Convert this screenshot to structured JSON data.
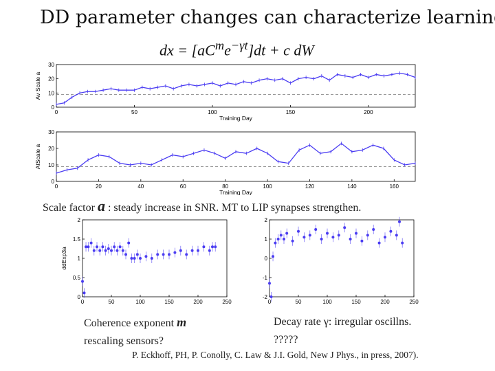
{
  "slide": {
    "title": "DD parameter changes can characterize learning",
    "equation": "dx = [aC^m e^{−γt}]dt + c dW",
    "equation_parts": {
      "lhs": "dx = [",
      "a": "a",
      "C": "C",
      "m": "m",
      "e": "e",
      "exp": "−γt",
      "rhs": "]dt + c dW"
    },
    "captions": {
      "scale_prefix": "Scale factor",
      "scale_symbol": "a",
      "scale_rest": ": steady increase in SNR. MT to LIP synapses strengthen.",
      "coherence_line1": "Coherence exponent",
      "coherence_symbol": "m",
      "coherence_line2": "rescaling sensors?",
      "decay_line1": "Decay rate γ: irregular oscillns.",
      "decay_line2": "?????"
    },
    "citation": "P. Eckhoff, PH, P. Conolly, C. Law & J.I. Gold, New J Phys., in press, 2007)."
  },
  "colors": {
    "series": "#4a3cf2",
    "dashed": "#777777",
    "axis": "#000000"
  },
  "chart_data": [
    {
      "id": "av-scale",
      "type": "line",
      "ylabel": "Av Scale a",
      "xlabel": "Training Day",
      "xlim": [
        0,
        230
      ],
      "ylim": [
        0,
        30
      ],
      "xticks": [
        0,
        50,
        100,
        150,
        200
      ],
      "yticks": [
        0,
        10,
        20,
        30
      ],
      "reference_line": 9,
      "x": [
        0,
        5,
        10,
        15,
        20,
        25,
        30,
        35,
        40,
        45,
        50,
        55,
        60,
        65,
        70,
        75,
        80,
        85,
        90,
        95,
        100,
        105,
        110,
        115,
        120,
        125,
        130,
        135,
        140,
        145,
        150,
        155,
        160,
        165,
        170,
        175,
        180,
        185,
        190,
        195,
        200,
        205,
        210,
        215,
        220,
        225,
        230
      ],
      "values": [
        2,
        3,
        7,
        10,
        11,
        11,
        12,
        13,
        12,
        12,
        12,
        14,
        13,
        14,
        15,
        13,
        15,
        16,
        15,
        16,
        17,
        15,
        17,
        16,
        18,
        17,
        19,
        20,
        19,
        20,
        17,
        20,
        21,
        20,
        22,
        19,
        23,
        22,
        21,
        23,
        21,
        23,
        22,
        23,
        24,
        23,
        21
      ]
    },
    {
      "id": "at-scale",
      "type": "line",
      "ylabel": "AtScale a",
      "xlabel": "Training Day",
      "xlim": [
        0,
        170
      ],
      "ylim": [
        0,
        30
      ],
      "xticks": [
        0,
        20,
        40,
        60,
        80,
        100,
        120,
        140,
        160
      ],
      "yticks": [
        0,
        10,
        20,
        30
      ],
      "reference_line": 9,
      "x": [
        0,
        5,
        10,
        15,
        20,
        25,
        30,
        35,
        40,
        45,
        50,
        55,
        60,
        65,
        70,
        75,
        80,
        85,
        90,
        95,
        100,
        105,
        110,
        115,
        120,
        125,
        130,
        135,
        140,
        145,
        150,
        155,
        160,
        165,
        170
      ],
      "values": [
        5,
        7,
        8,
        13,
        16,
        15,
        11,
        10,
        11,
        10,
        13,
        16,
        15,
        17,
        19,
        17,
        14,
        18,
        17,
        20,
        17,
        12,
        11,
        19,
        22,
        17,
        18,
        23,
        18,
        19,
        22,
        20,
        13,
        10,
        11
      ]
    },
    {
      "id": "coherence-exponent",
      "type": "scatter",
      "ylabel": "ddExp3a",
      "xlim": [
        0,
        250
      ],
      "ylim": [
        0,
        2
      ],
      "xticks": [
        0,
        50,
        100,
        150,
        200,
        250
      ],
      "yticks": [
        0,
        0.5,
        1,
        1.5,
        2
      ],
      "x": [
        0,
        3,
        6,
        10,
        15,
        20,
        25,
        30,
        35,
        40,
        45,
        50,
        55,
        60,
        65,
        70,
        75,
        80,
        85,
        90,
        95,
        100,
        110,
        120,
        130,
        140,
        150,
        160,
        170,
        180,
        190,
        200,
        210,
        220,
        225,
        230
      ],
      "values": [
        0.4,
        0.1,
        1.3,
        1.3,
        1.4,
        1.2,
        1.3,
        1.2,
        1.3,
        1.2,
        1.25,
        1.2,
        1.3,
        1.2,
        1.3,
        1.2,
        1.1,
        1.4,
        1.0,
        1.0,
        1.1,
        1.0,
        1.05,
        1.0,
        1.1,
        1.1,
        1.1,
        1.15,
        1.2,
        1.1,
        1.2,
        1.2,
        1.3,
        1.2,
        1.3,
        1.3
      ]
    },
    {
      "id": "decay-rate",
      "type": "scatter",
      "xlim": [
        0,
        250
      ],
      "ylim": [
        -2,
        2
      ],
      "xticks": [
        0,
        50,
        100,
        150,
        200,
        250
      ],
      "yticks": [
        -2,
        -1,
        0,
        1,
        2
      ],
      "x": [
        0,
        3,
        6,
        10,
        15,
        20,
        25,
        30,
        40,
        50,
        60,
        70,
        80,
        90,
        100,
        110,
        120,
        130,
        140,
        150,
        160,
        170,
        180,
        190,
        200,
        210,
        220,
        225,
        230
      ],
      "values": [
        -1.3,
        -2.0,
        0.1,
        0.8,
        1.0,
        1.2,
        1.0,
        1.3,
        0.9,
        1.4,
        1.1,
        1.2,
        1.5,
        1.0,
        1.3,
        1.1,
        1.2,
        1.6,
        1.0,
        1.3,
        0.9,
        1.2,
        1.5,
        0.8,
        1.1,
        1.4,
        1.2,
        1.9,
        0.8
      ]
    }
  ]
}
